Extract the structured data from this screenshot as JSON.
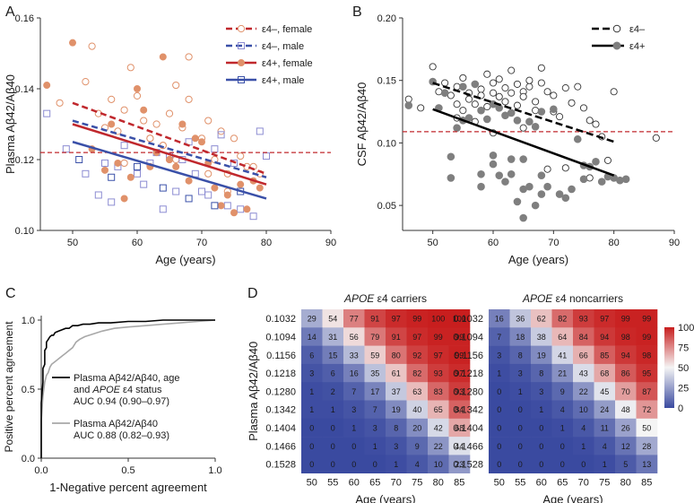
{
  "chart_data": [
    {
      "panel": "A",
      "type": "scatter",
      "xlabel": "Age (years)",
      "ylabel": "Plasma Aβ42/Aβ40",
      "xlim": [
        45,
        90
      ],
      "ylim": [
        0.1,
        0.16
      ],
      "xticks": [
        "50",
        "60",
        "70",
        "80",
        "90"
      ],
      "yticks": [
        "0.10",
        "0.12",
        "0.14",
        "0.16"
      ],
      "threshold": 0.122,
      "legend": [
        "ε4–, female",
        "ε4–, male",
        "ε4+, female",
        "ε4+, male"
      ],
      "colors": {
        "female": "#e0916a",
        "male": "#8c8cd2",
        "line_female": "#c0282d",
        "line_male": "#3a50a8",
        "threshold": "#c0282d"
      },
      "fit_lines": [
        {
          "name": "ε4–, female",
          "x": [
            50,
            80
          ],
          "y": [
            0.136,
            0.116
          ]
        },
        {
          "name": "ε4–, male",
          "x": [
            50,
            80
          ],
          "y": [
            0.131,
            0.115
          ]
        },
        {
          "name": "ε4+, female",
          "x": [
            50,
            80
          ],
          "y": [
            0.13,
            0.113
          ]
        },
        {
          "name": "ε4+, male",
          "x": [
            50,
            80
          ],
          "y": [
            0.125,
            0.109
          ]
        }
      ],
      "series": [
        {
          "name": "ε4–, female",
          "marker": "open-circle",
          "x": [
            48,
            52,
            54,
            55,
            57,
            58,
            60,
            61,
            62,
            63,
            64,
            65,
            66,
            66,
            67,
            68,
            70,
            71,
            72,
            73,
            74,
            75,
            76,
            77,
            78,
            79,
            53,
            56,
            59,
            62,
            65,
            68,
            71,
            74,
            64,
            58
          ],
          "y": [
            0.136,
            0.142,
            0.133,
            0.129,
            0.128,
            0.134,
            0.138,
            0.131,
            0.126,
            0.13,
            0.124,
            0.133,
            0.12,
            0.141,
            0.129,
            0.137,
            0.126,
            0.131,
            0.12,
            0.128,
            0.116,
            0.126,
            0.121,
            0.118,
            0.118,
            0.116,
            0.152,
            0.137,
            0.146,
            0.126,
            0.12,
            0.149,
            0.116,
            0.111,
            0.124,
            0.119
          ]
        },
        {
          "name": "ε4–, male",
          "marker": "open-square",
          "x": [
            46,
            49,
            52,
            54,
            56,
            58,
            60,
            62,
            64,
            66,
            67,
            68,
            70,
            72,
            74,
            75,
            76,
            78,
            79,
            80,
            55,
            61,
            65,
            71,
            57,
            63,
            69,
            73
          ],
          "y": [
            0.133,
            0.123,
            0.116,
            0.11,
            0.108,
            0.124,
            0.116,
            0.119,
            0.106,
            0.111,
            0.12,
            0.125,
            0.111,
            0.123,
            0.107,
            0.119,
            0.106,
            0.104,
            0.128,
            0.121,
            0.119,
            0.113,
            0.121,
            0.11,
            0.118,
            0.122,
            0.116,
            0.127
          ]
        },
        {
          "name": "ε4+, female",
          "marker": "filled-circle",
          "x": [
            46,
            50,
            53,
            55,
            57,
            59,
            60,
            61,
            62,
            63,
            64,
            65,
            66,
            67,
            68,
            69,
            70,
            72,
            73,
            74,
            75,
            76,
            77,
            78,
            58,
            56,
            71,
            79
          ],
          "y": [
            0.141,
            0.153,
            0.123,
            0.117,
            0.119,
            0.115,
            0.14,
            0.134,
            0.118,
            0.122,
            0.149,
            0.12,
            0.118,
            0.13,
            0.114,
            0.126,
            0.125,
            0.112,
            0.107,
            0.11,
            0.105,
            0.113,
            0.106,
            0.114,
            0.109,
            0.13,
            0.119,
            0.112
          ]
        },
        {
          "name": "ε4+, male",
          "marker": "open-square-dark",
          "x": [
            51,
            56,
            60,
            64,
            68,
            72,
            76
          ],
          "y": [
            0.12,
            0.115,
            0.118,
            0.112,
            0.109,
            0.107,
            0.111
          ]
        }
      ]
    },
    {
      "panel": "B",
      "type": "scatter",
      "xlabel": "Age (years)",
      "ylabel": "CSF Aβ42/Aβ40",
      "xlim": [
        45,
        90
      ],
      "ylim": [
        0.03,
        0.2
      ],
      "xticks": [
        "50",
        "60",
        "70",
        "80",
        "90"
      ],
      "yticks": [
        "0.05",
        "0.10",
        "0.15",
        "0.20"
      ],
      "threshold": 0.109,
      "legend": [
        "ε4–",
        "ε4+"
      ],
      "colors": {
        "neg": "#ffffff",
        "pos": "#7f7f7f",
        "stroke": "#333333",
        "threshold": "#c0282d"
      },
      "fit_lines": [
        {
          "name": "ε4–",
          "x": [
            50,
            80
          ],
          "y": [
            0.148,
            0.101
          ]
        },
        {
          "name": "ε4+",
          "x": [
            50,
            80
          ],
          "y": [
            0.127,
            0.074
          ]
        }
      ],
      "series": [
        {
          "name": "ε4–",
          "marker": "open-circle",
          "x": [
            46,
            48,
            50,
            51,
            52,
            53,
            54,
            54,
            55,
            55,
            56,
            56,
            57,
            57,
            58,
            58,
            59,
            59,
            60,
            60,
            61,
            61,
            62,
            62,
            63,
            63,
            64,
            64,
            65,
            65,
            66,
            66,
            67,
            67,
            68,
            68,
            69,
            70,
            70,
            71,
            72,
            73,
            74,
            75,
            76,
            77,
            78,
            79,
            80,
            87,
            62,
            65,
            57,
            69,
            72,
            54,
            60,
            76
          ],
          "y": [
            0.135,
            0.128,
            0.161,
            0.141,
            0.148,
            0.138,
            0.131,
            0.145,
            0.152,
            0.126,
            0.14,
            0.135,
            0.147,
            0.131,
            0.143,
            0.138,
            0.155,
            0.129,
            0.148,
            0.14,
            0.137,
            0.151,
            0.133,
            0.144,
            0.14,
            0.158,
            0.13,
            0.147,
            0.141,
            0.137,
            0.145,
            0.15,
            0.126,
            0.133,
            0.16,
            0.148,
            0.141,
            0.138,
            0.125,
            0.121,
            0.144,
            0.132,
            0.145,
            0.128,
            0.118,
            0.115,
            0.105,
            0.086,
            0.141,
            0.104,
            0.122,
            0.112,
            0.117,
            0.079,
            0.08,
            0.12,
            0.108,
            0.072
          ]
        },
        {
          "name": "ε4+",
          "marker": "filled-circle",
          "x": [
            46,
            50,
            51,
            52,
            53,
            54,
            55,
            55,
            56,
            57,
            58,
            58,
            59,
            60,
            60,
            61,
            61,
            62,
            62,
            63,
            63,
            64,
            64,
            65,
            65,
            66,
            66,
            67,
            67,
            68,
            68,
            69,
            70,
            71,
            72,
            73,
            74,
            75,
            75,
            76,
            77,
            78,
            79,
            80,
            81,
            82,
            53,
            58,
            60,
            63,
            65,
            68
          ],
          "y": [
            0.13,
            0.149,
            0.128,
            0.14,
            0.089,
            0.112,
            0.118,
            0.145,
            0.12,
            0.147,
            0.126,
            0.065,
            0.119,
            0.131,
            0.09,
            0.128,
            0.074,
            0.122,
            0.069,
            0.087,
            0.124,
            0.118,
            0.053,
            0.087,
            0.04,
            0.117,
            0.065,
            0.113,
            0.05,
            0.125,
            0.074,
            0.065,
            0.127,
            0.059,
            0.056,
            0.063,
            0.103,
            0.082,
            0.071,
            0.081,
            0.085,
            0.069,
            0.073,
            0.072,
            0.07,
            0.071,
            0.072,
            0.075,
            0.083,
            0.075,
            0.063,
            0.059
          ]
        }
      ]
    },
    {
      "panel": "C",
      "type": "line",
      "xlabel": "1-Negative percent agreement",
      "ylabel": "Positive percent agreement",
      "xlim": [
        0,
        1
      ],
      "ylim": [
        0,
        1
      ],
      "xticks": [
        "0.0",
        "0.5",
        "1.0"
      ],
      "yticks": [
        "0.0",
        "0.5",
        "1.0"
      ],
      "colors": {
        "model": "#000000",
        "plasma": "#a8a8a8"
      },
      "series": [
        {
          "name": "model",
          "label_lines": [
            "Plasma Aβ42/Aβ40, age",
            "and APOE ε4 status",
            "AUC 0.94 (0.90–0.97)"
          ],
          "x": [
            0,
            0,
            0.01,
            0.01,
            0.02,
            0.02,
            0.03,
            0.03,
            0.04,
            0.05,
            0.06,
            0.07,
            0.08,
            0.1,
            0.12,
            0.14,
            0.16,
            0.18,
            0.21,
            0.24,
            0.28,
            0.33,
            0.4,
            0.5,
            0.6,
            0.7,
            0.8,
            1.0
          ],
          "y": [
            0,
            0.4,
            0.55,
            0.65,
            0.68,
            0.78,
            0.8,
            0.84,
            0.86,
            0.88,
            0.89,
            0.89,
            0.91,
            0.92,
            0.93,
            0.94,
            0.94,
            0.96,
            0.96,
            0.97,
            0.97,
            0.98,
            0.98,
            0.99,
            0.99,
            1.0,
            1.0,
            1.0
          ]
        },
        {
          "name": "plasma",
          "label_lines": [
            "Plasma Aβ42/Aβ40",
            "AUC 0.88 (0.82–0.93)"
          ],
          "x": [
            0,
            0,
            0.01,
            0.02,
            0.03,
            0.04,
            0.05,
            0.06,
            0.08,
            0.1,
            0.12,
            0.14,
            0.16,
            0.18,
            0.2,
            0.22,
            0.25,
            0.3,
            0.35,
            0.42,
            0.5,
            0.6,
            0.7,
            0.8,
            0.9,
            1.0
          ],
          "y": [
            0,
            0.27,
            0.45,
            0.55,
            0.6,
            0.62,
            0.66,
            0.68,
            0.7,
            0.72,
            0.74,
            0.76,
            0.78,
            0.8,
            0.84,
            0.86,
            0.88,
            0.9,
            0.92,
            0.94,
            0.95,
            0.96,
            0.97,
            0.98,
            0.99,
            1.0
          ]
        }
      ]
    },
    {
      "panel": "D",
      "type": "heatmap",
      "ylabel": "Plasma Aβ42/Aβ40",
      "xlabel": "Age (years)",
      "x": [
        "50",
        "55",
        "60",
        "65",
        "70",
        "75",
        "80",
        "85"
      ],
      "y": [
        "0.1032",
        "0.1094",
        "0.1156",
        "0.1218",
        "0.1280",
        "0.1342",
        "0.1404",
        "0.1466",
        "0.1528"
      ],
      "colorbar": {
        "ticks": [
          "100",
          "75",
          "50",
          "25",
          "0"
        ],
        "range": [
          0,
          100
        ]
      },
      "colors": {
        "low": "#3a4aa0",
        "mid": "#f4f4f4",
        "high": "#c81e1e"
      },
      "matrices": [
        {
          "title_italic": "APOE",
          "title_rest": " ε4 carriers",
          "values": [
            [
              29,
              54,
              77,
              91,
              97,
              99,
              100,
              100
            ],
            [
              14,
              31,
              56,
              79,
              91,
              97,
              99,
              99
            ],
            [
              6,
              15,
              33,
              59,
              80,
              92,
              97,
              99
            ],
            [
              3,
              6,
              16,
              35,
              61,
              82,
              93,
              97
            ],
            [
              1,
              2,
              7,
              17,
              37,
              63,
              83,
              93
            ],
            [
              1,
              1,
              3,
              7,
              19,
              40,
              65,
              84
            ],
            [
              0,
              0,
              1,
              3,
              8,
              20,
              42,
              68
            ],
            [
              0,
              0,
              0,
              1,
              3,
              9,
              22,
              44
            ],
            [
              0,
              0,
              0,
              0,
              1,
              4,
              10,
              23
            ]
          ]
        },
        {
          "title_italic": "APOE",
          "title_rest": " ε4 noncarriers",
          "values": [
            [
              16,
              36,
              62,
              82,
              93,
              97,
              99,
              99
            ],
            [
              7,
              18,
              38,
              64,
              84,
              94,
              98,
              99
            ],
            [
              3,
              8,
              19,
              41,
              66,
              85,
              94,
              98
            ],
            [
              1,
              3,
              8,
              21,
              43,
              68,
              86,
              95
            ],
            [
              0,
              1,
              3,
              9,
              22,
              45,
              70,
              87
            ],
            [
              0,
              0,
              1,
              4,
              10,
              24,
              48,
              72
            ],
            [
              0,
              0,
              0,
              1,
              4,
              11,
              26,
              50
            ],
            [
              0,
              0,
              0,
              0,
              1,
              4,
              12,
              28
            ],
            [
              0,
              0,
              0,
              0,
              0,
              1,
              5,
              13
            ]
          ]
        }
      ]
    }
  ],
  "panels": {
    "a_letter": "A",
    "b_letter": "B",
    "c_letter": "C",
    "d_letter": "D"
  }
}
